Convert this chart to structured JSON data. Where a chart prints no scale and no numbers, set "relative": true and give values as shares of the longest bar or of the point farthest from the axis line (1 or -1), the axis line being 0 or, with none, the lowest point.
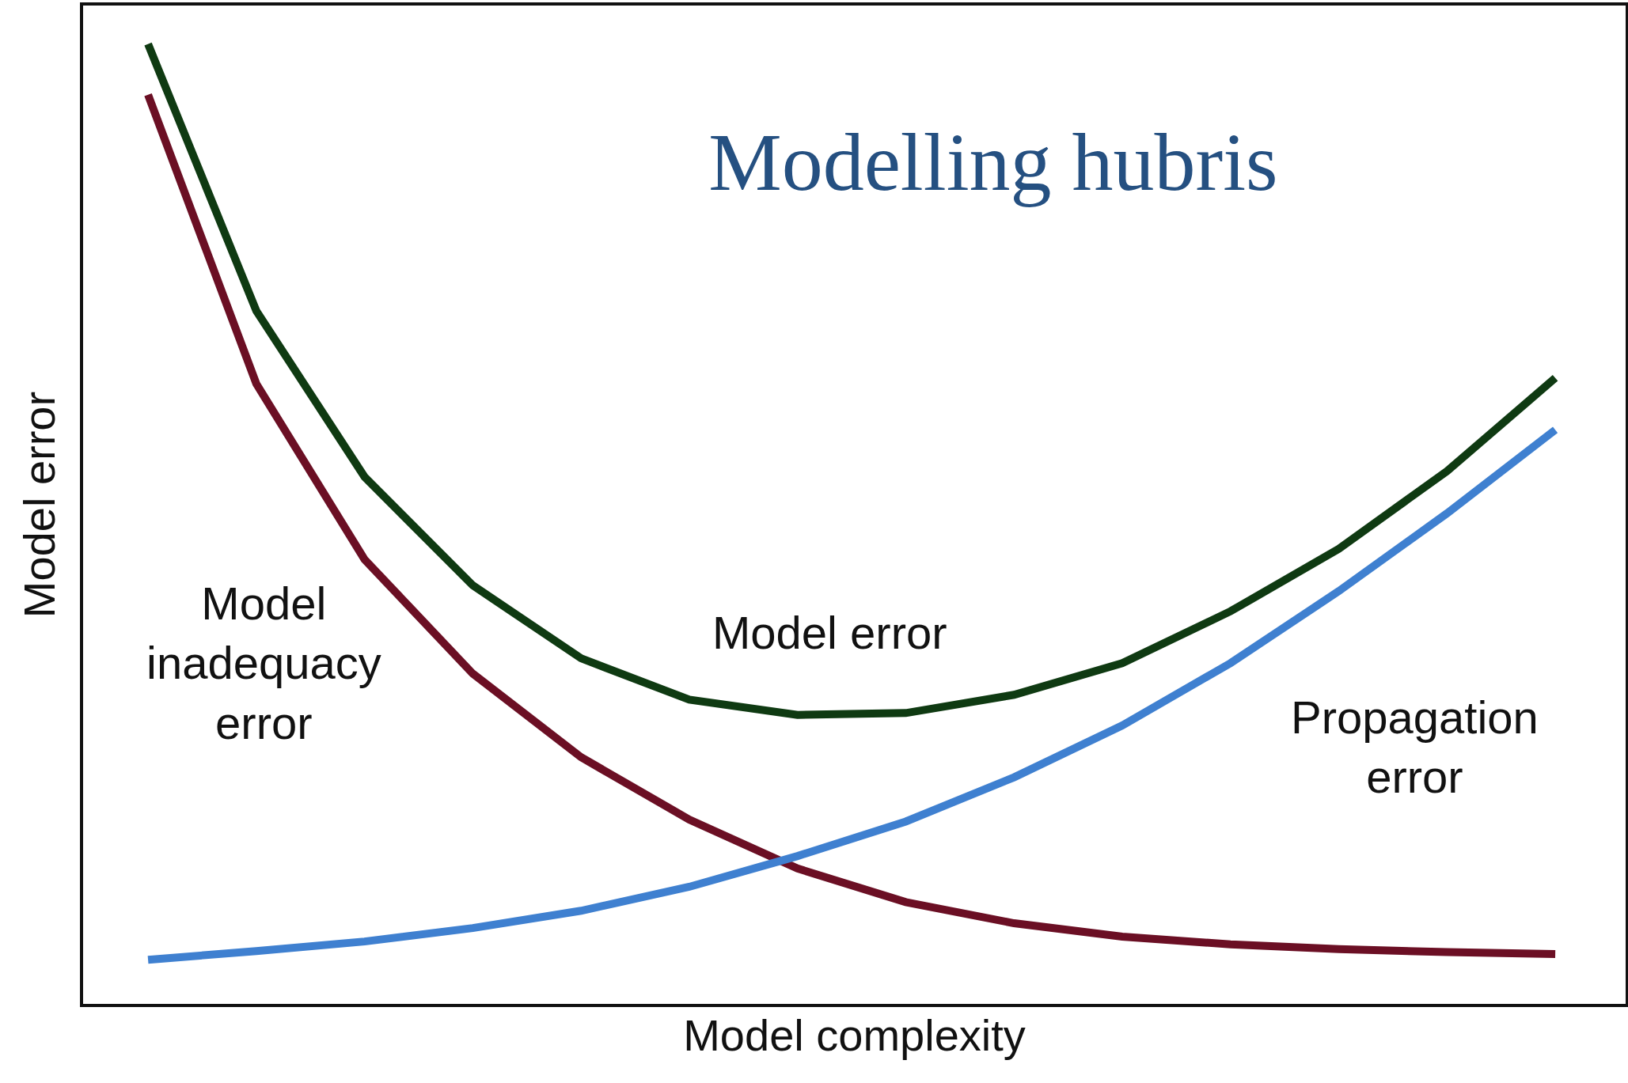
{
  "chart_data": {
    "type": "line",
    "title": "Modelling hubris",
    "xlabel": "Model complexity",
    "ylabel": "Model error",
    "relative": true,
    "tick_labels": false,
    "marker": "none",
    "line_style": "solid",
    "categories": [
      null,
      null,
      null,
      null,
      null,
      null,
      null,
      null,
      null,
      null,
      null,
      null,
      null,
      null
    ],
    "series": [
      {
        "name": "Model\ninadequacy\nerror",
        "color": "#6b0f24",
        "values": [
          0.947,
          0.646,
          0.463,
          0.344,
          0.257,
          0.192,
          0.141,
          0.106,
          0.084,
          0.07,
          0.062,
          0.057,
          0.054,
          0.052
        ]
      },
      {
        "name": "Model error",
        "color": "#0f3a12",
        "values": [
          1,
          0.722,
          0.549,
          0.436,
          0.36,
          0.317,
          0.301,
          0.303,
          0.322,
          0.355,
          0.409,
          0.474,
          0.555,
          0.652
        ]
      },
      {
        "name": "Propagation\nerror",
        "color": "#3f80d0",
        "values": [
          0.046,
          0.055,
          0.065,
          0.079,
          0.097,
          0.122,
          0.154,
          0.19,
          0.236,
          0.29,
          0.355,
          0.43,
          0.511,
          0.598
        ]
      }
    ]
  }
}
